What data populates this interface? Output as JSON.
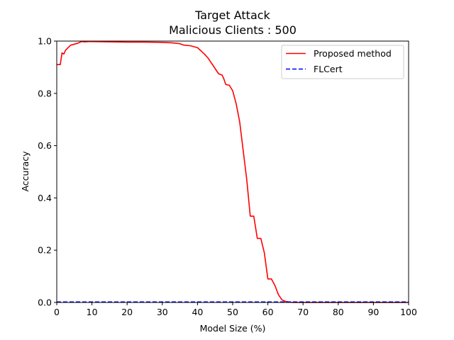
{
  "chart_data": {
    "type": "line",
    "title_line1": "Target Attack",
    "title_line2": "Malicious Clients : 500",
    "xlabel": "Model Size (%)",
    "ylabel": "Accuracy",
    "xlim": [
      0,
      100
    ],
    "ylim": [
      0,
      1.0
    ],
    "xticks": [
      "0",
      "10",
      "20",
      "30",
      "40",
      "50",
      "60",
      "70",
      "80",
      "90",
      "100"
    ],
    "yticks": [
      "0.0",
      "0.2",
      "0.4",
      "0.6",
      "0.8",
      "1.0"
    ],
    "grid": false,
    "legend_position": "top-right",
    "series": [
      {
        "name": "Proposed method",
        "color": "#ff0000",
        "style": "solid",
        "x": [
          0,
          1,
          1.5,
          2,
          2.5,
          3,
          4,
          5,
          6,
          7,
          8,
          9,
          10,
          15,
          20,
          25,
          30,
          33,
          35,
          36,
          38,
          40,
          42,
          43,
          44,
          45,
          46,
          47,
          47.5,
          48,
          48.5,
          49,
          50,
          51,
          52,
          53,
          54,
          55,
          56,
          57,
          58,
          59,
          60,
          61,
          62,
          63,
          64,
          65,
          66,
          67,
          70,
          80,
          90,
          100
        ],
        "y": [
          0.91,
          0.91,
          0.955,
          0.95,
          0.965,
          0.972,
          0.985,
          0.988,
          0.992,
          0.998,
          0.997,
          0.998,
          0.998,
          0.997,
          0.996,
          0.996,
          0.995,
          0.993,
          0.99,
          0.985,
          0.982,
          0.975,
          0.95,
          0.935,
          0.915,
          0.895,
          0.875,
          0.87,
          0.855,
          0.835,
          0.832,
          0.832,
          0.81,
          0.76,
          0.69,
          0.58,
          0.47,
          0.33,
          0.33,
          0.245,
          0.245,
          0.19,
          0.09,
          0.09,
          0.065,
          0.03,
          0.01,
          0.004,
          0.002,
          0.0,
          0.0,
          0.0,
          0.0,
          0.0
        ]
      },
      {
        "name": "FLCert",
        "color": "#0000ff",
        "style": "dashed",
        "x": [
          0,
          100
        ],
        "y": [
          0.002,
          0.002
        ]
      }
    ]
  }
}
